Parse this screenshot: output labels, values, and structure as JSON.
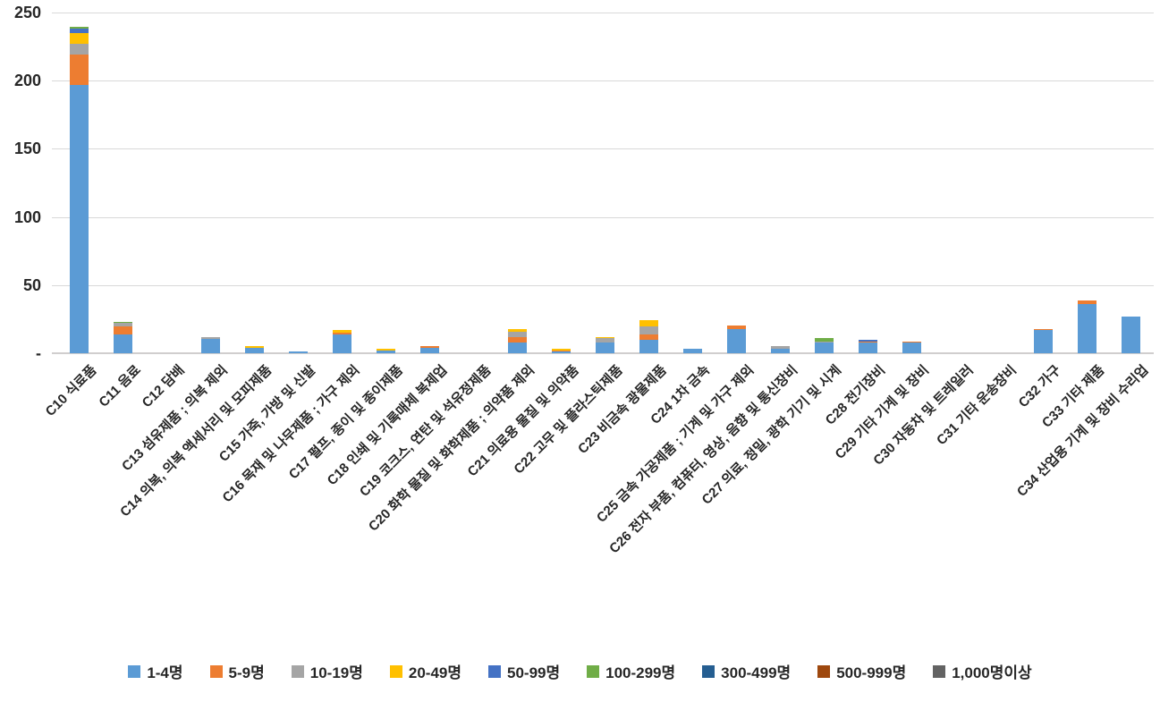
{
  "chart_data": {
    "type": "bar",
    "stacked": true,
    "orientation": "vertical",
    "title": "",
    "xlabel": "",
    "ylabel": "",
    "ylim": [
      0,
      250
    ],
    "ytick_interval": 50,
    "yticks_top_down": [
      "250",
      "200",
      "150",
      "100",
      "50",
      "-"
    ],
    "grid": true,
    "legend_position": "bottom",
    "categories": [
      "C10 식료품",
      "C11 음료",
      "C12 담배",
      "C13 섬유제품 ; 의복 제외",
      "C14 의복, 의복 액세서리 및 모피제품",
      "C15 가죽, 가방 및 신발",
      "C16 목재 및 나무제품 ; 가구 제외",
      "C17 펄프, 종이 및 종이제품",
      "C18 인쇄 및 기록매체 복제업",
      "C19 코크스, 연탄 및 석유정제품",
      "C20 화학 물질 및 화학제품 ; 의약품 제외",
      "C21 의료용 물질 및 의약품",
      "C22 고무 및 플라스틱제품",
      "C23 비금속 광물제품",
      "C24 1차 금속",
      "C25 금속 가공제품 ; 기계 및 가구 제외",
      "C26 전자 부품, 컴퓨터, 영상, 음향 및 통신장비",
      "C27 의료, 정밀, 광학 기기 및 시계",
      "C28 전기장비",
      "C29 기타 기계 및 장비",
      "C30 자동차 및 트레일러",
      "C31 기타 운송장비",
      "C32 가구",
      "C33 기타 제품",
      "C34 산업용 기계 및 장비 수리업"
    ],
    "series": [
      {
        "name": "1-4명",
        "color": "#5B9BD5",
        "values": [
          197,
          14,
          0,
          10.5,
          4,
          1,
          14,
          2,
          4,
          0,
          8,
          1.5,
          8,
          10,
          3,
          18,
          3,
          8,
          8,
          8,
          0,
          0,
          17.5,
          36,
          27
        ]
      },
      {
        "name": "5-9명",
        "color": "#ED7D31",
        "values": [
          22,
          6,
          0,
          0,
          0,
          0,
          1,
          0,
          1,
          0,
          4,
          0.5,
          0,
          4,
          0,
          2.5,
          0,
          0,
          0.5,
          0.5,
          0,
          0,
          0.5,
          2.5,
          0
        ]
      },
      {
        "name": "10-19명",
        "color": "#A5A5A5",
        "values": [
          8,
          2,
          0,
          1.5,
          0,
          0,
          0,
          0,
          0,
          0,
          4,
          0,
          3,
          6,
          0,
          0,
          2,
          0.5,
          0,
          0,
          0,
          0,
          0,
          0,
          0
        ]
      },
      {
        "name": "20-49명",
        "color": "#FFC000",
        "values": [
          8,
          0,
          0,
          0,
          1,
          0,
          2,
          1,
          0,
          0,
          1.5,
          1,
          1,
          4,
          0,
          0,
          0,
          0,
          0,
          0,
          0,
          0,
          0,
          0,
          0
        ]
      },
      {
        "name": "50-99명",
        "color": "#4472C4",
        "values": [
          3,
          0,
          0,
          0,
          0,
          0,
          0,
          0,
          0,
          0,
          0,
          0,
          0,
          0,
          0,
          0,
          0,
          0,
          1.5,
          0,
          0,
          0,
          0,
          0,
          0
        ]
      },
      {
        "name": "100-299명",
        "color": "#70AD47",
        "values": [
          1.5,
          1,
          0,
          0,
          0,
          0,
          0,
          0,
          0,
          0,
          0,
          0,
          0,
          0,
          0,
          0,
          0,
          2.5,
          0,
          0,
          0,
          0,
          0,
          0,
          0
        ]
      },
      {
        "name": "300-499명",
        "color": "#255E91",
        "values": [
          0,
          0,
          0,
          0,
          0,
          0,
          0,
          0,
          0,
          0,
          0,
          0,
          0,
          0,
          0,
          0,
          0,
          0,
          0,
          0,
          0,
          0,
          0,
          0,
          0
        ]
      },
      {
        "name": "500-999명",
        "color": "#9E480E",
        "values": [
          0,
          0,
          0,
          0,
          0,
          0,
          0,
          0,
          0,
          0,
          0,
          0,
          0,
          0,
          0,
          0,
          0,
          0,
          0,
          0,
          0,
          0,
          0,
          0,
          0
        ]
      },
      {
        "name": "1,000명이상",
        "color": "#636363",
        "values": [
          0,
          0,
          0,
          0,
          0,
          0,
          0,
          0,
          0,
          0,
          0,
          0,
          0,
          0,
          0,
          0,
          0,
          0,
          0,
          0,
          0,
          0,
          0,
          0,
          0
        ]
      }
    ]
  },
  "layout_colors": {
    "gridline": "#D9D9D9",
    "axis_text": "#262626",
    "background": "#FFFFFF"
  }
}
